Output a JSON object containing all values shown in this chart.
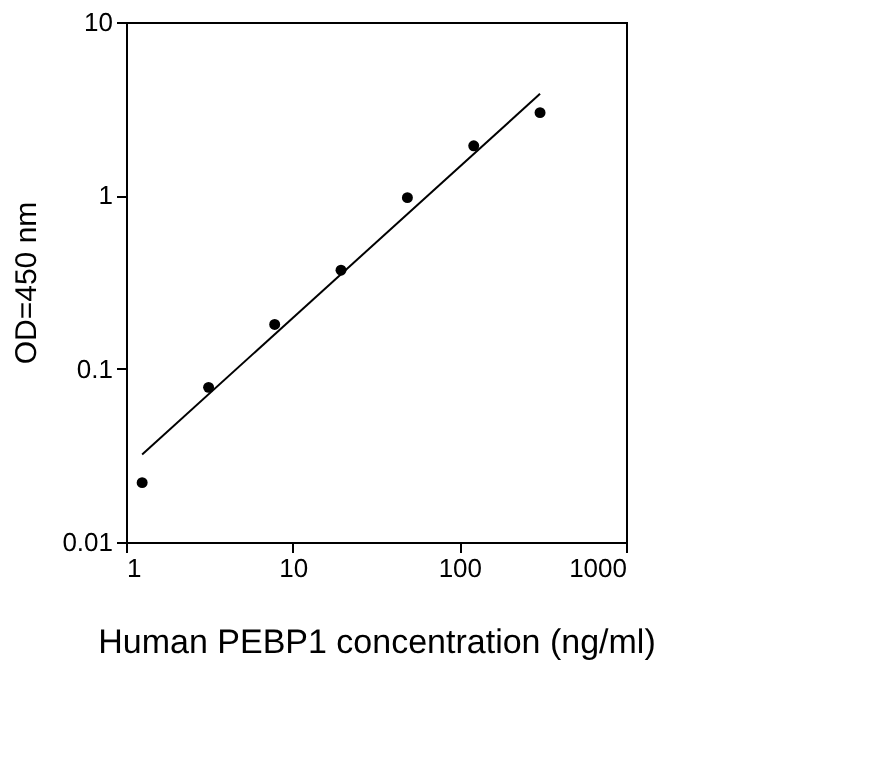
{
  "chart_data": {
    "type": "scatter",
    "xlabel": "Human PEBP1 concentration (ng/ml)",
    "ylabel": "OD=450 nm",
    "log": "xy",
    "grid": false,
    "series": [
      {
        "color": "#000000",
        "marker": "circle",
        "x": [
          1.25,
          3.13,
          7.8,
          19.5,
          48.8,
          122,
          305
        ],
        "values": [
          0.022,
          0.078,
          0.18,
          0.37,
          0.97,
          1.93,
          3.0
        ]
      },
      {
        "type": "line",
        "color": "#000000",
        "x": [
          1.25,
          305
        ],
        "values": [
          0.032,
          3.85
        ]
      }
    ],
    "xlim": [
      1,
      1000
    ],
    "xticks": [
      1,
      10,
      100,
      1000
    ],
    "ylim": [
      0.01,
      10
    ],
    "yticks": [
      0.01,
      0.1,
      1,
      10
    ]
  }
}
